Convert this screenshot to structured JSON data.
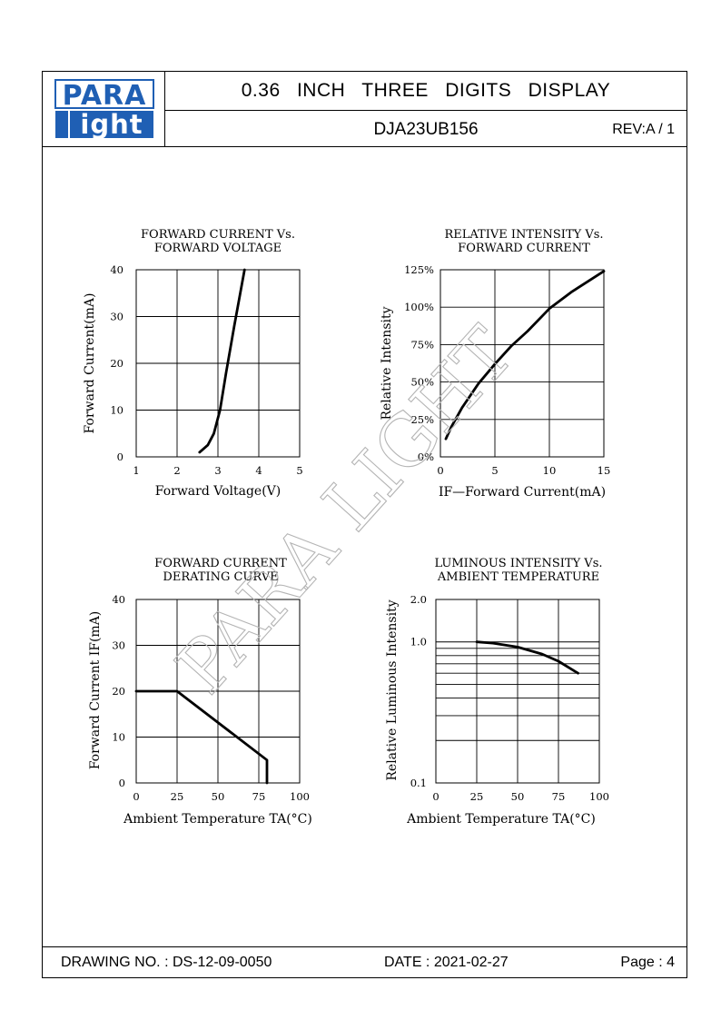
{
  "header": {
    "logo_top": "PARA",
    "logo_bottom": "ight",
    "title": "0.36 INCH THREE DIGITS DISPLAY",
    "part_number": "DJA23UB156",
    "revision": "REV:A / 1"
  },
  "watermark": "PARA LIGHT",
  "footer": {
    "drawing_no": "DRAWING NO. : DS-12-09-0050",
    "date": "DATE : 2021-02-27",
    "page": "Page : 4"
  },
  "colors": {
    "line": "#000000",
    "logo_blue": "#1f5fb4",
    "watermark": "#b4b4b4"
  },
  "chart_data": [
    {
      "type": "line",
      "title": "FORWARD  CURRENT  Vs.",
      "subtitle": "FORWARD  VOLTAGE",
      "xlabel": "Forward  Voltage(V)",
      "ylabel": "Forward  Current(mA)",
      "xlim": [
        1,
        5
      ],
      "ylim": [
        0,
        40
      ],
      "x_ticks": [
        "1",
        "2",
        "3",
        "4",
        "5"
      ],
      "y_ticks": [
        "0",
        "10",
        "20",
        "30",
        "40"
      ],
      "grid": true,
      "series": [
        {
          "x": [
            2.55,
            2.75,
            2.9,
            3.05,
            3.2,
            3.4,
            3.65
          ],
          "y": [
            1,
            2.5,
            5,
            10,
            18,
            28,
            40
          ]
        }
      ]
    },
    {
      "type": "line",
      "title": "RELATIVE  INTENSITY  Vs.",
      "subtitle": "FORWARD  CURRENT",
      "xlabel": "IF—Forward  Current(mA)",
      "ylabel": "Relative  Intensity",
      "xlim": [
        0,
        15
      ],
      "ylim": [
        0,
        125
      ],
      "x_ticks": [
        "0",
        "5",
        "10",
        "15"
      ],
      "y_ticks": [
        "0%",
        "25%",
        "50%",
        "75%",
        "100%",
        "125%"
      ],
      "grid": true,
      "series": [
        {
          "x": [
            0.5,
            1,
            2,
            3.5,
            5,
            6.5,
            8,
            10,
            12,
            15
          ],
          "y": [
            12,
            20,
            33,
            49,
            62,
            74,
            84,
            99,
            110,
            124
          ]
        }
      ]
    },
    {
      "type": "line",
      "title": "FORWARD  CURRENT",
      "subtitle": "DERATING  CURVE",
      "xlabel": "Ambient  Temperature  TA(°C)",
      "ylabel": "Forward  Current  IF(mA)",
      "xlim": [
        0,
        100
      ],
      "ylim": [
        0,
        40
      ],
      "x_ticks": [
        "0",
        "25",
        "50",
        "75",
        "100"
      ],
      "y_ticks": [
        "0",
        "10",
        "20",
        "30",
        "40"
      ],
      "grid": true,
      "series": [
        {
          "x": [
            0,
            25,
            80,
            80
          ],
          "y": [
            20,
            20,
            5,
            0
          ]
        }
      ]
    },
    {
      "type": "line",
      "title": "LUMINOUS  INTENSITY  Vs.",
      "subtitle": "AMBIENT  TEMPERATURE",
      "xlabel": "Ambient  Temperature  TA(°C)",
      "ylabel": "Relative  Luminous  Intensity",
      "xlim": [
        0,
        100
      ],
      "ylim": [
        0.1,
        2.0
      ],
      "yscale": "log",
      "x_ticks": [
        "0",
        "25",
        "50",
        "75",
        "100"
      ],
      "y_ticks": [
        "0.1",
        "1.0",
        "2.0"
      ],
      "grid": true,
      "series": [
        {
          "x": [
            25,
            35,
            50,
            65,
            75,
            87
          ],
          "y": [
            1.0,
            0.98,
            0.92,
            0.82,
            0.73,
            0.6
          ]
        }
      ]
    }
  ]
}
